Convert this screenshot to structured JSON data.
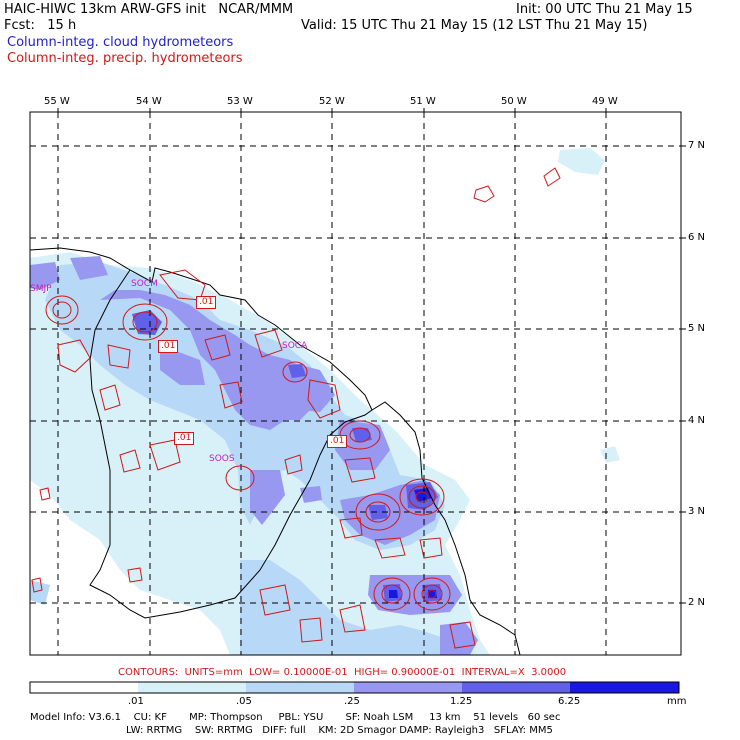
{
  "header": {
    "title": "HAIC-HIWC 13km ARW-GFS init   NCAR/MMM",
    "init": "Init: 00 UTC Thu 21 May 15",
    "fcst": "Fcst:   15 h",
    "valid": "Valid: 15 UTC Thu 21 May 15 (12 LST Thu 21 May 15)",
    "field1": "Column-integ. cloud hydrometeors",
    "field2": "Column-integ. precip. hydrometeors"
  },
  "colors": {
    "cloud_field": "#2020d0",
    "precip_field": "#d01818",
    "station": "#c020c0",
    "shade_1": "#d8f0f8",
    "shade_2": "#b8d8f8",
    "shade_3": "#9898f0",
    "shade_4": "#6060e8",
    "shade_5": "#1818e0"
  },
  "axes": {
    "longitudes": [
      "55 W",
      "54 W",
      "53 W",
      "52 W",
      "51 W",
      "50 W",
      "49 W"
    ],
    "latitudes": [
      "7 N",
      "6 N",
      "5 N",
      "4 N",
      "3 N",
      "2 N"
    ]
  },
  "stations": [
    "SMJP",
    "SOCM",
    "SOCA",
    "SOOS"
  ],
  "contour_labels": [
    ".01",
    ".01",
    ".01",
    ".01"
  ],
  "contour_info": "CONTOURS:  UNITS=mm  LOW= 0.10000E-01  HIGH= 0.90000E-01  INTERVAL=X  3.0000",
  "colorbar": {
    "ticks": [
      ".01",
      ".05",
      ".25",
      "1.25",
      "6.25"
    ],
    "units": "mm"
  },
  "model_info": {
    "line1": "Model Info: V3.6.1    CU: KF       MP: Thompson     PBL: YSU       SF: Noah LSM     13 km    51 levels   60 sec",
    "line2": "LW: RRTMG    SW: RRTMG   DIFF: full    KM: 2D Smagor DAMP: Rayleigh3   SFLAY: MM5"
  }
}
